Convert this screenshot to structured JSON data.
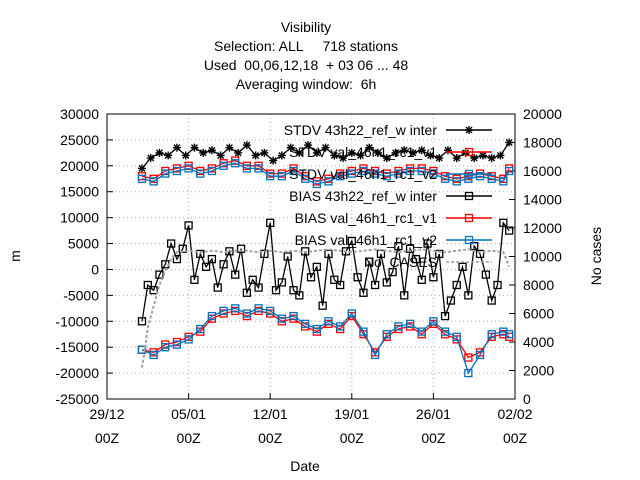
{
  "chart_data": {
    "type": "line",
    "title_lines": [
      "Visibility",
      "Selection: ALL     718 stations",
      "Used  00,06,12,18  + 03 06 ... 48",
      "Averaging window:  6h"
    ],
    "xlabel": "Date",
    "ylabel": "m",
    "y2label": "No cases",
    "xlim": [
      "2023-12-29T00",
      "2024-02-02T00"
    ],
    "ylim": [
      -25000,
      30000
    ],
    "y2lim": [
      0,
      20000
    ],
    "xticks": [
      {
        "x": "2023-12-29T00",
        "line1": "29/12",
        "line2": "00Z"
      },
      {
        "x": "2024-01-05T00",
        "line1": "05/01",
        "line2": "00Z"
      },
      {
        "x": "2024-01-12T00",
        "line1": "12/01",
        "line2": "00Z"
      },
      {
        "x": "2024-01-19T00",
        "line1": "19/01",
        "line2": "00Z"
      },
      {
        "x": "2024-01-26T00",
        "line1": "26/01",
        "line2": "00Z"
      },
      {
        "x": "2024-02-02T00",
        "line1": "02/02",
        "line2": "00Z"
      }
    ],
    "yticks": [
      "-25000",
      "-20000",
      "-15000",
      "-10000",
      "-5000",
      "0",
      "5000",
      "10000",
      "15000",
      "20000",
      "25000",
      "30000"
    ],
    "y2ticks": [
      "0",
      "2000",
      "4000",
      "6000",
      "8000",
      "10000",
      "12000",
      "14000",
      "16000",
      "18000",
      "20000"
    ],
    "grid": true,
    "legend_position": "top-right",
    "legend": [
      {
        "label": "STDV 43h22_ref_w inter",
        "color": "#000000",
        "marker": "star"
      },
      {
        "label": "STDV val_46h1_rc1_v1",
        "color": "#ff0000",
        "marker": "square"
      },
      {
        "label": "STDV val_46h1_rc1_v2",
        "color": "#0072bd",
        "marker": "square"
      },
      {
        "label": "BIAS 43h22_ref_w inter",
        "color": "#000000",
        "marker": "square"
      },
      {
        "label": "BIAS val_46h1_rc1_v1",
        "color": "#ff0000",
        "marker": "square"
      },
      {
        "label": "BIAS val_46h1_rc1_v2",
        "color": "#0072bd",
        "marker": "square"
      },
      {
        "label": "No. CASES",
        "color": "#a0a0a0",
        "marker": "none"
      }
    ],
    "series": [
      {
        "name": "STDV 43h22_ref_w inter",
        "axis": "y",
        "color": "#000000",
        "marker": "star",
        "x": [
          "2024-01-01T00",
          "2024-01-01T18",
          "2024-01-02T12",
          "2024-01-03T06",
          "2024-01-04T00",
          "2024-01-04T18",
          "2024-01-05T12",
          "2024-01-06T06",
          "2024-01-07T00",
          "2024-01-07T18",
          "2024-01-08T12",
          "2024-01-09T06",
          "2024-01-10T00",
          "2024-01-10T18",
          "2024-01-11T12",
          "2024-01-12T06",
          "2024-01-13T00",
          "2024-01-13T18",
          "2024-01-14T12",
          "2024-01-15T06",
          "2024-01-16T00",
          "2024-01-16T18",
          "2024-01-17T12",
          "2024-01-18T06",
          "2024-01-19T00",
          "2024-01-19T18",
          "2024-01-20T12",
          "2024-01-21T06",
          "2024-01-22T00",
          "2024-01-22T18",
          "2024-01-23T12",
          "2024-01-24T06",
          "2024-01-25T00",
          "2024-01-25T18",
          "2024-01-26T12",
          "2024-01-27T06",
          "2024-01-28T00",
          "2024-01-28T18",
          "2024-01-29T12",
          "2024-01-30T06",
          "2024-01-31T00",
          "2024-01-31T18",
          "2024-02-01T12"
        ],
        "values": [
          19500,
          21500,
          22500,
          22000,
          23500,
          22000,
          23500,
          22500,
          23000,
          22000,
          23500,
          22500,
          24000,
          22000,
          22500,
          21000,
          22000,
          23500,
          22500,
          24000,
          22500,
          23500,
          22000,
          21500,
          22500,
          22000,
          23500,
          22500,
          21500,
          22500,
          23000,
          22500,
          23000,
          22000,
          21500,
          23000,
          21500,
          22500,
          21500,
          22000,
          21500,
          22000,
          24500
        ]
      },
      {
        "name": "STDV val_46h1_rc1_v1",
        "axis": "y",
        "color": "#ff0000",
        "marker": "square",
        "x": [
          "2024-01-01T00",
          "2024-01-02T00",
          "2024-01-03T00",
          "2024-01-04T00",
          "2024-01-05T00",
          "2024-01-06T00",
          "2024-01-07T00",
          "2024-01-08T00",
          "2024-01-09T00",
          "2024-01-10T00",
          "2024-01-11T00",
          "2024-01-12T00",
          "2024-01-13T00",
          "2024-01-14T00",
          "2024-01-15T00",
          "2024-01-16T00",
          "2024-01-17T00",
          "2024-01-18T00",
          "2024-01-19T00",
          "2024-01-20T00",
          "2024-01-21T00",
          "2024-01-22T00",
          "2024-01-23T00",
          "2024-01-24T00",
          "2024-01-25T00",
          "2024-01-26T00",
          "2024-01-27T00",
          "2024-01-28T00",
          "2024-01-29T00",
          "2024-01-30T00",
          "2024-01-31T00",
          "2024-02-01T00",
          "2024-02-01T12"
        ],
        "values": [
          18000,
          17500,
          19000,
          19500,
          20000,
          19000,
          19500,
          20500,
          21000,
          20000,
          20000,
          18500,
          18500,
          19500,
          18000,
          17000,
          17500,
          18500,
          19000,
          19500,
          19000,
          18500,
          19000,
          19500,
          19500,
          19000,
          18000,
          17500,
          18000,
          18500,
          18000,
          17500,
          19500
        ]
      },
      {
        "name": "STDV val_46h1_rc1_v2",
        "axis": "y",
        "color": "#0072bd",
        "marker": "square",
        "x": [
          "2024-01-01T00",
          "2024-01-02T00",
          "2024-01-03T00",
          "2024-01-04T00",
          "2024-01-05T00",
          "2024-01-06T00",
          "2024-01-07T00",
          "2024-01-08T00",
          "2024-01-09T00",
          "2024-01-10T00",
          "2024-01-11T00",
          "2024-01-12T00",
          "2024-01-13T00",
          "2024-01-14T00",
          "2024-01-15T00",
          "2024-01-16T00",
          "2024-01-17T00",
          "2024-01-18T00",
          "2024-01-19T00",
          "2024-01-20T00",
          "2024-01-21T00",
          "2024-01-22T00",
          "2024-01-23T00",
          "2024-01-24T00",
          "2024-01-25T00",
          "2024-01-26T00",
          "2024-01-27T00",
          "2024-01-28T00",
          "2024-01-29T00",
          "2024-01-30T00",
          "2024-01-31T00",
          "2024-02-01T00",
          "2024-02-01T12"
        ],
        "values": [
          17500,
          17000,
          18500,
          19000,
          19500,
          18500,
          19000,
          20000,
          20500,
          19500,
          19500,
          18000,
          18000,
          19000,
          17500,
          16500,
          17000,
          18000,
          18500,
          19000,
          18500,
          18000,
          18500,
          19000,
          19000,
          18500,
          17500,
          17000,
          17500,
          18000,
          17500,
          17000,
          19000
        ]
      },
      {
        "name": "BIAS 43h22_ref_w inter",
        "axis": "y",
        "color": "#000000",
        "marker": "square",
        "x": [
          "2024-01-01T00",
          "2024-01-01T12",
          "2024-01-02T00",
          "2024-01-02T12",
          "2024-01-03T00",
          "2024-01-03T12",
          "2024-01-04T00",
          "2024-01-04T12",
          "2024-01-05T00",
          "2024-01-05T12",
          "2024-01-06T00",
          "2024-01-06T12",
          "2024-01-07T00",
          "2024-01-07T12",
          "2024-01-08T00",
          "2024-01-08T12",
          "2024-01-09T00",
          "2024-01-09T12",
          "2024-01-10T00",
          "2024-01-10T12",
          "2024-01-11T00",
          "2024-01-11T12",
          "2024-01-12T00",
          "2024-01-12T12",
          "2024-01-13T00",
          "2024-01-13T12",
          "2024-01-14T00",
          "2024-01-14T12",
          "2024-01-15T00",
          "2024-01-15T12",
          "2024-01-16T00",
          "2024-01-16T12",
          "2024-01-17T00",
          "2024-01-17T12",
          "2024-01-18T00",
          "2024-01-18T12",
          "2024-01-19T00",
          "2024-01-19T12",
          "2024-01-20T00",
          "2024-01-20T12",
          "2024-01-21T00",
          "2024-01-21T12",
          "2024-01-22T00",
          "2024-01-22T12",
          "2024-01-23T00",
          "2024-01-23T12",
          "2024-01-24T00",
          "2024-01-24T12",
          "2024-01-25T00",
          "2024-01-25T12",
          "2024-01-26T00",
          "2024-01-26T12",
          "2024-01-27T00",
          "2024-01-27T12",
          "2024-01-28T00",
          "2024-01-28T12",
          "2024-01-29T00",
          "2024-01-29T12",
          "2024-01-30T00",
          "2024-01-30T12",
          "2024-01-31T00",
          "2024-01-31T12",
          "2024-02-01T00",
          "2024-02-01T12"
        ],
        "values": [
          -10000,
          -3000,
          -4000,
          -1000,
          1000,
          5000,
          2000,
          4000,
          8500,
          -2000,
          3000,
          500,
          2000,
          -3500,
          1000,
          3500,
          -1000,
          4000,
          -4500,
          -2000,
          -3500,
          3000,
          9000,
          -4000,
          -2500,
          2500,
          -4000,
          -5000,
          3500,
          -1500,
          500,
          -7000,
          3000,
          -2000,
          -3000,
          3500,
          5500,
          -1500,
          -4500,
          1500,
          -3000,
          3000,
          -2500,
          -500,
          4500,
          -5000,
          4000,
          2000,
          -2000,
          5000,
          -1500,
          3000,
          -9000,
          -6000,
          -3000,
          500,
          -5000,
          4500,
          3000,
          -1000,
          -6000,
          -3000,
          9000,
          7500
        ]
      },
      {
        "name": "BIAS val_46h1_rc1_v1",
        "axis": "y",
        "color": "#ff0000",
        "marker": "square",
        "x": [
          "2024-01-01T00",
          "2024-01-02T00",
          "2024-01-03T00",
          "2024-01-04T00",
          "2024-01-05T00",
          "2024-01-06T00",
          "2024-01-07T00",
          "2024-01-08T00",
          "2024-01-09T00",
          "2024-01-10T00",
          "2024-01-11T00",
          "2024-01-12T00",
          "2024-01-13T00",
          "2024-01-14T00",
          "2024-01-15T00",
          "2024-01-16T00",
          "2024-01-17T00",
          "2024-01-18T00",
          "2024-01-19T00",
          "2024-01-20T00",
          "2024-01-21T00",
          "2024-01-22T00",
          "2024-01-23T00",
          "2024-01-24T00",
          "2024-01-25T00",
          "2024-01-26T00",
          "2024-01-27T00",
          "2024-01-28T00",
          "2024-01-29T00",
          "2024-01-30T00",
          "2024-01-31T00",
          "2024-02-01T00",
          "2024-02-01T12"
        ],
        "values": [
          -15500,
          -16000,
          -14500,
          -14000,
          -13000,
          -12000,
          -9500,
          -8500,
          -8000,
          -9000,
          -8000,
          -8500,
          -10000,
          -9500,
          -11000,
          -12000,
          -10500,
          -11500,
          -9000,
          -12500,
          -16000,
          -13000,
          -11500,
          -11000,
          -12500,
          -10500,
          -12500,
          -13500,
          -17000,
          -16000,
          -13000,
          -12500,
          -13000
        ]
      },
      {
        "name": "BIAS val_46h1_rc1_v2",
        "axis": "y",
        "color": "#0072bd",
        "marker": "square",
        "x": [
          "2024-01-01T00",
          "2024-01-02T00",
          "2024-01-03T00",
          "2024-01-04T00",
          "2024-01-05T00",
          "2024-01-06T00",
          "2024-01-07T00",
          "2024-01-08T00",
          "2024-01-09T00",
          "2024-01-10T00",
          "2024-01-11T00",
          "2024-01-12T00",
          "2024-01-13T00",
          "2024-01-14T00",
          "2024-01-15T00",
          "2024-01-16T00",
          "2024-01-17T00",
          "2024-01-18T00",
          "2024-01-19T00",
          "2024-01-20T00",
          "2024-01-21T00",
          "2024-01-22T00",
          "2024-01-23T00",
          "2024-01-24T00",
          "2024-01-25T00",
          "2024-01-26T00",
          "2024-01-27T00",
          "2024-01-28T00",
          "2024-01-29T00",
          "2024-01-30T00",
          "2024-01-31T00",
          "2024-02-01T00",
          "2024-02-01T12"
        ],
        "values": [
          -15500,
          -16500,
          -15000,
          -14500,
          -13500,
          -11500,
          -9000,
          -8000,
          -7500,
          -8500,
          -7500,
          -8000,
          -9500,
          -9000,
          -10500,
          -11500,
          -10000,
          -11000,
          -8500,
          -12000,
          -16500,
          -12500,
          -11000,
          -10500,
          -12000,
          -10000,
          -12000,
          -13000,
          -20000,
          -16500,
          -12500,
          -12000,
          -12500
        ]
      },
      {
        "name": "No. CASES",
        "axis": "y2",
        "color": "#a0a0a0",
        "marker": "none",
        "x": [
          "2024-01-01T00",
          "2024-01-01T06",
          "2024-01-01T12",
          "2024-01-02T00",
          "2024-01-02T12",
          "2024-01-03T00",
          "2024-01-03T12",
          "2024-01-04T00",
          "2024-01-05T00",
          "2024-01-06T00",
          "2024-01-07T00",
          "2024-01-08T00",
          "2024-01-09T00",
          "2024-01-10T00",
          "2024-01-11T00",
          "2024-01-12T00",
          "2024-01-13T00",
          "2024-01-14T00",
          "2024-01-15T00",
          "2024-01-16T00",
          "2024-01-17T00",
          "2024-01-18T00",
          "2024-01-19T00",
          "2024-01-20T00",
          "2024-01-21T00",
          "2024-01-22T00",
          "2024-01-23T00",
          "2024-01-24T00",
          "2024-01-25T00",
          "2024-01-26T00",
          "2024-01-27T00",
          "2024-01-28T00",
          "2024-01-29T00",
          "2024-01-30T00",
          "2024-01-31T00",
          "2024-02-01T00",
          "2024-02-01T12"
        ],
        "values": [
          2200,
          3500,
          5000,
          6500,
          8000,
          9000,
          9800,
          10300,
          10400,
          10300,
          10400,
          10300,
          10400,
          10400,
          10300,
          10400,
          10300,
          10400,
          10300,
          10400,
          10500,
          10400,
          10300,
          10400,
          10500,
          10400,
          10300,
          10400,
          10500,
          10400,
          10300,
          10400,
          10500,
          10300,
          10400,
          10300,
          9300
        ]
      }
    ]
  }
}
